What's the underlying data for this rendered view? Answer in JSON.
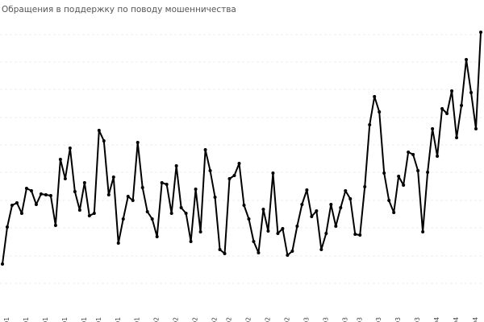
{
  "chart_data": {
    "type": "line",
    "title": "Обращения в поддержку по поводу мошенничества",
    "categories": [
      null,
      "Q1",
      null,
      null,
      null,
      "Q1",
      null,
      null,
      null,
      "Q1",
      null,
      null,
      null,
      "Q1",
      null,
      null,
      null,
      "Q1",
      null,
      null,
      "Q1",
      null,
      null,
      null,
      "Q1",
      null,
      null,
      null,
      "Q1",
      null,
      null,
      null,
      "Q2",
      null,
      null,
      null,
      "Q2",
      null,
      null,
      null,
      "Q2",
      null,
      null,
      null,
      "Q2",
      null,
      null,
      "Q2",
      null,
      null,
      null,
      "Q2",
      null,
      null,
      null,
      "Q2",
      null,
      null,
      null,
      "Q2",
      null,
      null,
      null,
      "Q3",
      null,
      null,
      null,
      "Q3",
      null,
      null,
      null,
      "Q3",
      null,
      null,
      "Q3",
      null,
      null,
      null,
      "Q3",
      null,
      null,
      null,
      "Q3",
      null,
      null,
      null,
      "Q3",
      null,
      null,
      null,
      "Q4",
      null,
      null,
      null,
      "Q4",
      null,
      null,
      null,
      "Q4",
      null
    ],
    "values": [
      52,
      98,
      125,
      128,
      115,
      146,
      143,
      126,
      139,
      138,
      137,
      100,
      182,
      158,
      196,
      142,
      119,
      153,
      112,
      115,
      218,
      205,
      138,
      160,
      78,
      108,
      136,
      131,
      203,
      147,
      117,
      108,
      86,
      153,
      151,
      115,
      174,
      122,
      115,
      80,
      145,
      92,
      194,
      168,
      135,
      70,
      65,
      158,
      162,
      177,
      125,
      108,
      80,
      66,
      120,
      93,
      165,
      90,
      96,
      63,
      68,
      99,
      126,
      144,
      111,
      118,
      70,
      90,
      126,
      99,
      122,
      143,
      133,
      89,
      88,
      148,
      225,
      260,
      241,
      165,
      131,
      116,
      161,
      150,
      191,
      188,
      168,
      92,
      166,
      220,
      186,
      245,
      239,
      267,
      209,
      249,
      306,
      265,
      220,
      340
    ],
    "color": "#000000",
    "ylim": [
      0,
      360
    ],
    "yticks": [
      28,
      62,
      97,
      131,
      166,
      200,
      234,
      269,
      303,
      337
    ],
    "grid": true
  }
}
